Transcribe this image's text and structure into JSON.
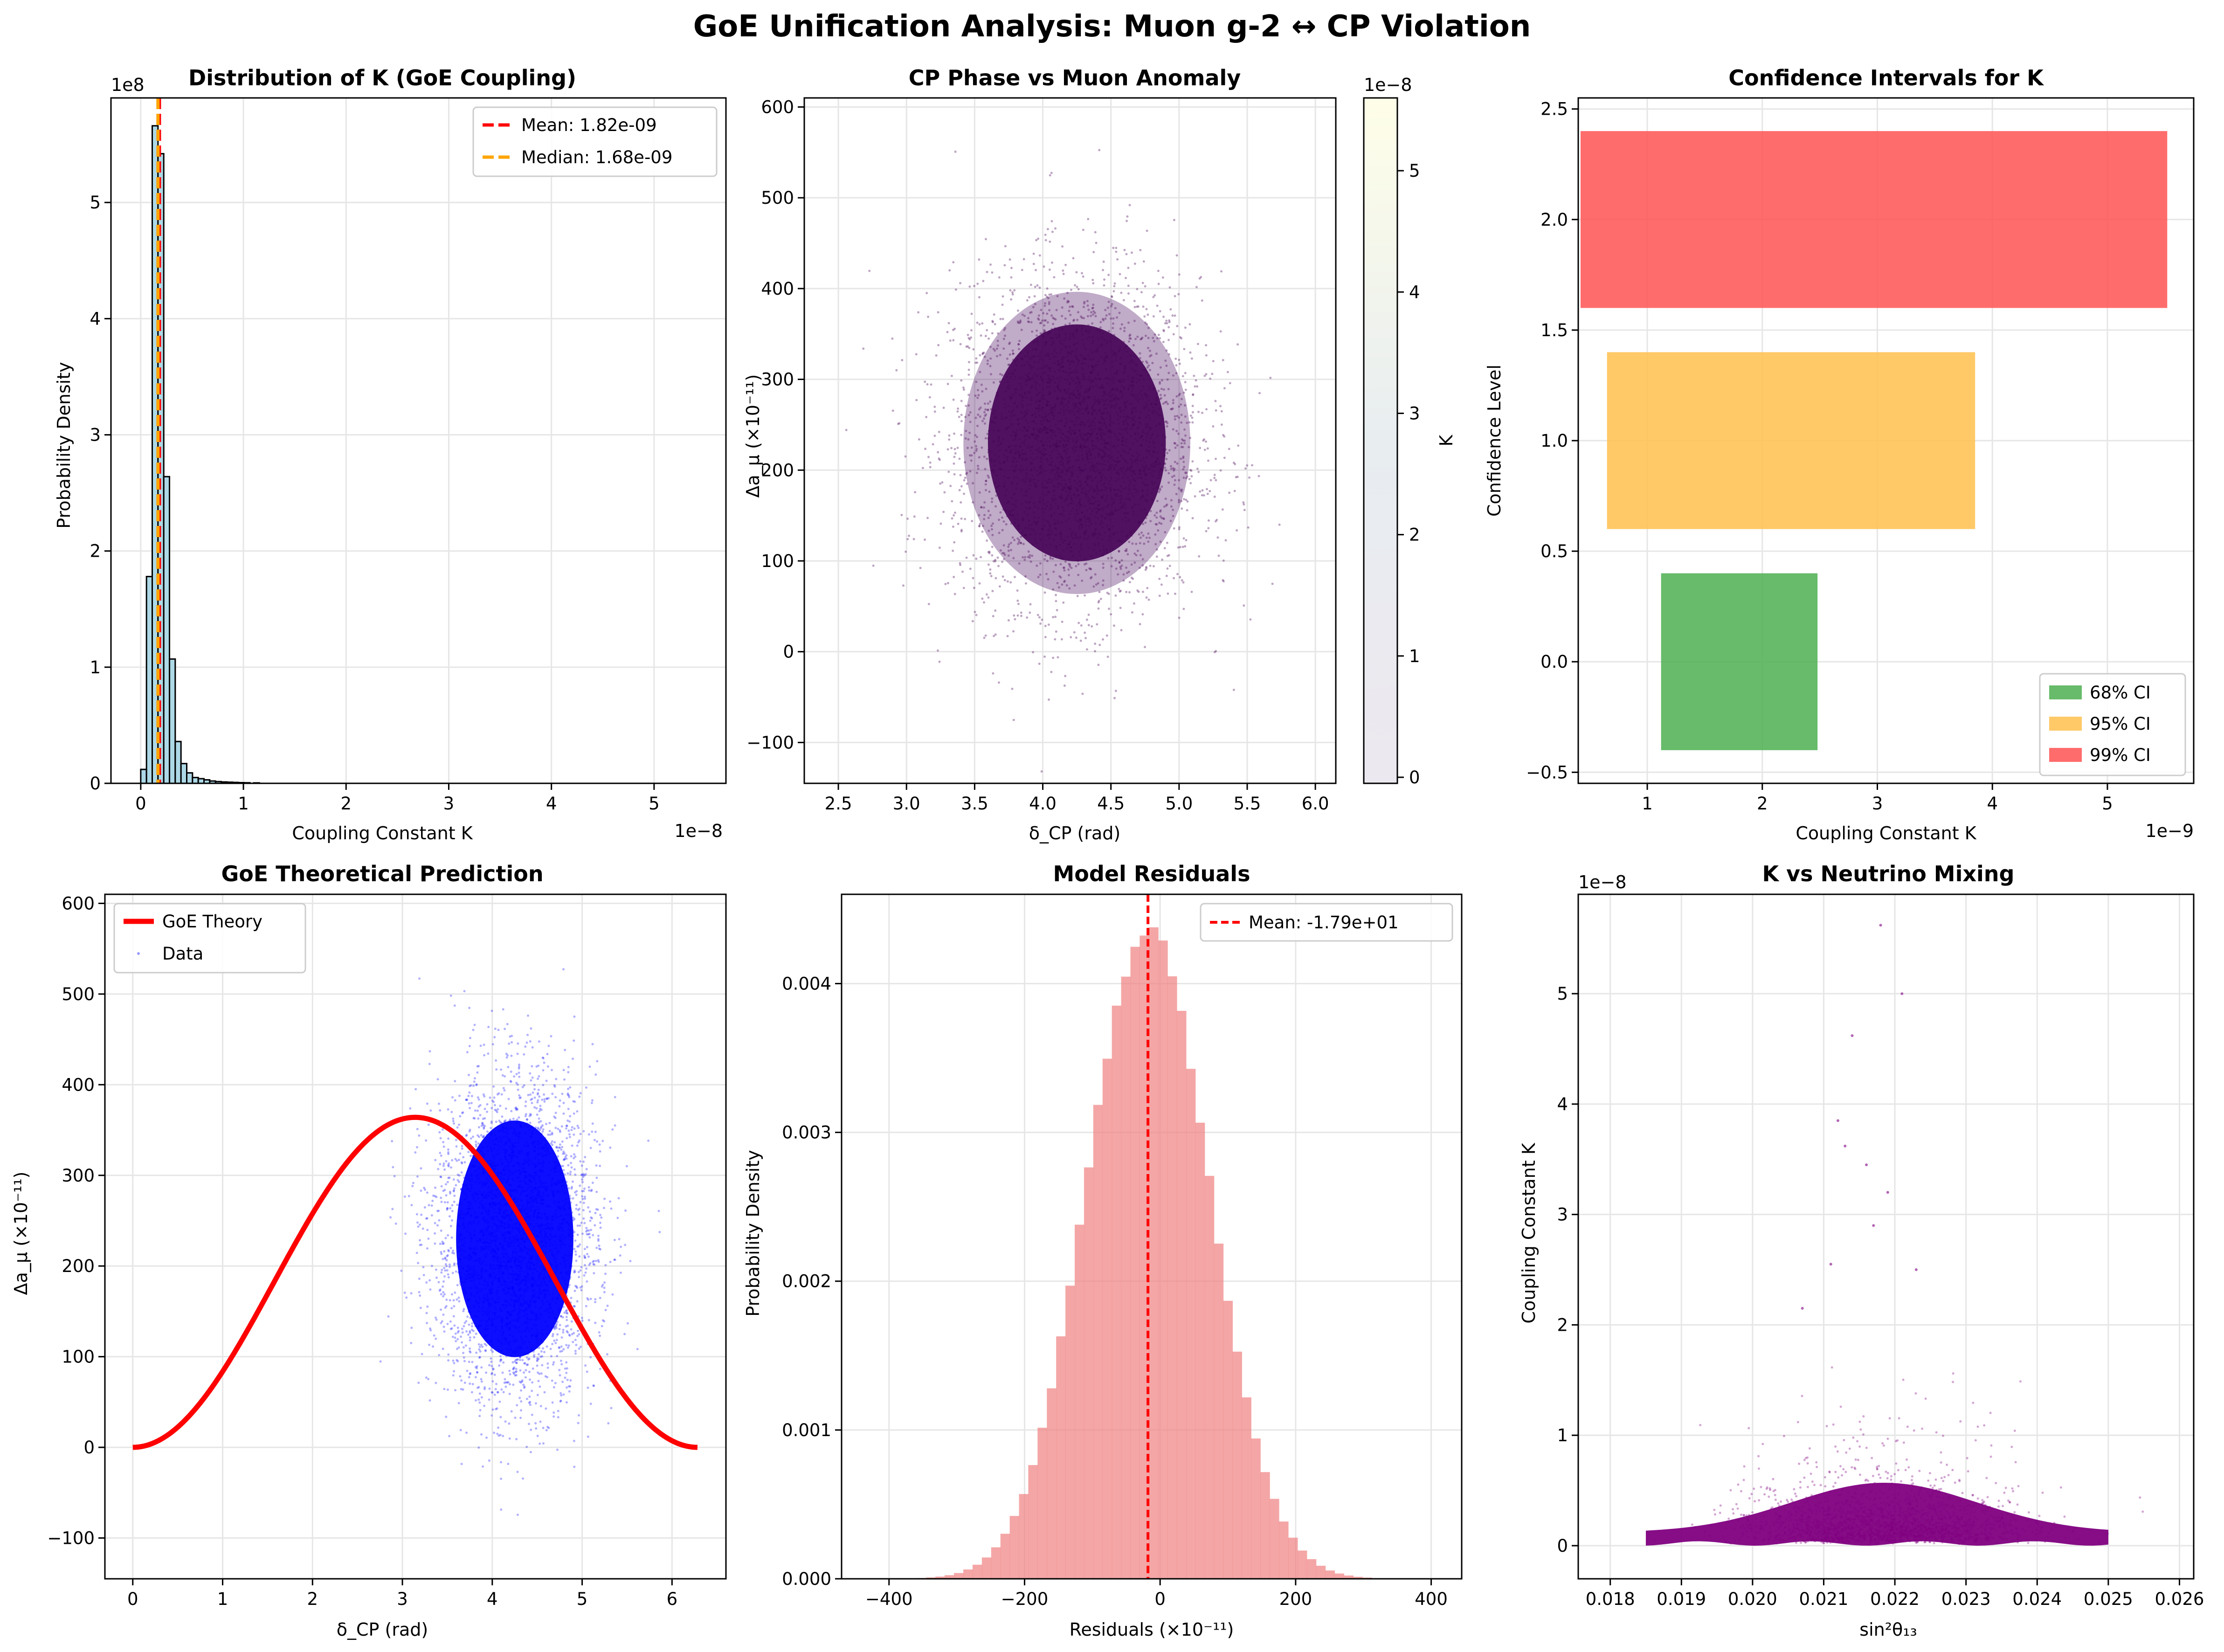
{
  "suptitle": "GoE Unification Analysis: Muon g-2 ↔ CP Violation",
  "colors": {
    "hist_fill": "#add8e6",
    "hist_edge": "#000000",
    "mean_line": "#ff0000",
    "median_line": "#ffa500",
    "ci68": "#4caf50",
    "ci95": "#ffc04d",
    "ci99": "#ff5252",
    "theory": "#ff0000",
    "data_points": "#0000ff",
    "residual_fill": "#f08080",
    "mixing_points": "#800080",
    "grid": "#e6e6e6"
  },
  "chart_data": [
    {
      "id": "k-distribution",
      "type": "bar",
      "title": "Distribution of K (GoE Coupling)",
      "xlabel": "Coupling Constant K",
      "ylabel": "Probability Density",
      "x_offset_label": "1e−8",
      "y_offset_label": "1e8",
      "xlim": [
        -0.29,
        5.7
      ],
      "ylim": [
        0,
        5.9
      ],
      "xticks": [
        0,
        1,
        2,
        3,
        4,
        5
      ],
      "xtick_labels": [
        "0",
        "1",
        "2",
        "3",
        "4",
        "5"
      ],
      "yticks": [
        0,
        1,
        2,
        3,
        4,
        5
      ],
      "ytick_labels": [
        "0",
        "1",
        "2",
        "3",
        "4",
        "5"
      ],
      "bin_width": 0.056,
      "bins_x": [
        0.0,
        0.056,
        0.112,
        0.168,
        0.224,
        0.28,
        0.336,
        0.392,
        0.448,
        0.504,
        0.56,
        0.616,
        0.672,
        0.728,
        0.784,
        0.84,
        0.896,
        0.952,
        1.008,
        1.1
      ],
      "values": [
        0.12,
        1.78,
        5.66,
        5.42,
        2.64,
        1.07,
        0.36,
        0.17,
        0.09,
        0.05,
        0.04,
        0.03,
        0.02,
        0.015,
        0.012,
        0.01,
        0.008,
        0.006,
        0.005,
        0.004
      ],
      "vlines": [
        {
          "label": "Mean: 1.82e-09",
          "x": 0.182,
          "style": "mean"
        },
        {
          "label": "Median: 1.68e-09",
          "x": 0.168,
          "style": "median"
        }
      ],
      "legend": "upper right",
      "grid": true
    },
    {
      "id": "cp-vs-muon",
      "type": "scatter",
      "title": "CP Phase vs Muon Anomaly",
      "xlabel": "δ_CP (rad)",
      "ylabel": "Δa_μ (×10⁻¹¹)",
      "xlim": [
        2.25,
        6.15
      ],
      "ylim": [
        -145,
        610
      ],
      "xticks": [
        2.5,
        3.0,
        3.5,
        4.0,
        4.5,
        5.0,
        5.5,
        6.0
      ],
      "xtick_labels": [
        "2.5",
        "3.0",
        "3.5",
        "4.0",
        "4.5",
        "5.0",
        "5.5",
        "6.0"
      ],
      "yticks": [
        -100,
        0,
        100,
        200,
        300,
        400,
        500,
        600
      ],
      "ytick_labels": [
        "−100",
        "0",
        "100",
        "200",
        "300",
        "400",
        "500",
        "600"
      ],
      "cloud": {
        "center_x": 4.25,
        "center_y": 230,
        "sigma_x": 0.45,
        "sigma_y": 90
      },
      "colorbar": {
        "label": "K",
        "offset_label": "1e−8",
        "ticks": [
          0,
          1,
          2,
          3,
          4,
          5
        ],
        "tick_labels": [
          "0",
          "1",
          "2",
          "3",
          "4",
          "5"
        ],
        "range": [
          -0.05,
          5.6
        ],
        "stops": [
          "#440154",
          "#3b528b",
          "#21918c",
          "#5ec962",
          "#fde725"
        ]
      },
      "grid": true
    },
    {
      "id": "confidence-intervals",
      "type": "bar",
      "orientation": "horizontal",
      "title": "Confidence Intervals for K",
      "xlabel": "Coupling Constant K",
      "ylabel": "Confidence Level",
      "x_offset_label": "1e−9",
      "xlim": [
        0.4,
        5.75
      ],
      "ylim": [
        -0.55,
        2.55
      ],
      "xticks": [
        1,
        2,
        3,
        4,
        5
      ],
      "xtick_labels": [
        "1",
        "2",
        "3",
        "4",
        "5"
      ],
      "yticks": [
        -0.5,
        0.0,
        0.5,
        1.0,
        1.5,
        2.0,
        2.5
      ],
      "ytick_labels": [
        "−0.5",
        "0.0",
        "0.5",
        "1.0",
        "1.5",
        "2.0",
        "2.5"
      ],
      "bars": [
        {
          "name": "68% CI",
          "y": 0,
          "low": 1.12,
          "high": 2.48,
          "color_key": "ci68"
        },
        {
          "name": "95% CI",
          "y": 1,
          "low": 0.65,
          "high": 3.85,
          "color_key": "ci95"
        },
        {
          "name": "99% CI",
          "y": 2,
          "low": 0.42,
          "high": 5.52,
          "color_key": "ci99"
        }
      ],
      "bar_height": 0.8,
      "legend": "lower right",
      "grid": true
    },
    {
      "id": "goe-theory",
      "type": "line",
      "title": "GoE Theoretical Prediction",
      "xlabel": "δ_CP (rad)",
      "ylabel": "Δa_μ (×10⁻¹¹)",
      "xlim": [
        -0.31,
        6.6
      ],
      "ylim": [
        -145,
        610
      ],
      "xticks": [
        0,
        1,
        2,
        3,
        4,
        5,
        6
      ],
      "xtick_labels": [
        "0",
        "1",
        "2",
        "3",
        "4",
        "5",
        "6"
      ],
      "yticks": [
        -100,
        0,
        100,
        200,
        300,
        400,
        500,
        600
      ],
      "ytick_labels": [
        "−100",
        "0",
        "100",
        "200",
        "300",
        "400",
        "500",
        "600"
      ],
      "series": [
        {
          "name": "GoE Theory",
          "kind": "line",
          "formula": "182*(1-cos(x))",
          "x_range": [
            0,
            6.2832
          ],
          "peak": 364
        },
        {
          "name": "Data",
          "kind": "scatter",
          "cloud": {
            "center_x": 4.25,
            "center_y": 230,
            "sigma_x": 0.45,
            "sigma_y": 90
          }
        }
      ],
      "legend": "upper left",
      "grid": true
    },
    {
      "id": "model-residuals",
      "type": "bar",
      "title": "Model Residuals",
      "xlabel": "Residuals (×10⁻¹¹)",
      "ylabel": "Probability Density",
      "xlim": [
        -470,
        445
      ],
      "ylim": [
        0,
        0.0046
      ],
      "xticks": [
        -400,
        -200,
        0,
        200,
        400
      ],
      "xtick_labels": [
        "−400",
        "−200",
        "0",
        "200",
        "400"
      ],
      "yticks": [
        0,
        0.001,
        0.002,
        0.003,
        0.004
      ],
      "ytick_labels": [
        "0.000",
        "0.001",
        "0.002",
        "0.003",
        "0.004"
      ],
      "bin_width": 13.7,
      "gaussian": {
        "mean": -17.9,
        "sigma": 91,
        "peak": 0.00438,
        "range": [
          -400,
          400
        ]
      },
      "vlines": [
        {
          "label": "Mean: -1.79e+01",
          "x": -17.9,
          "style": "mean"
        }
      ],
      "legend": "upper right",
      "grid": true
    },
    {
      "id": "k-vs-mixing",
      "type": "scatter",
      "title": "K vs Neutrino Mixing",
      "xlabel": "sin²θ₁₃",
      "ylabel": "Coupling Constant K",
      "y_offset_label": "1e−8",
      "xlim": [
        0.01755,
        0.0262
      ],
      "ylim": [
        -0.3,
        5.9
      ],
      "xticks": [
        0.018,
        0.019,
        0.02,
        0.021,
        0.022,
        0.023,
        0.024,
        0.025,
        0.026
      ],
      "xtick_labels": [
        "0.018",
        "0.019",
        "0.020",
        "0.021",
        "0.022",
        "0.023",
        "0.024",
        "0.025",
        "0.026"
      ],
      "yticks": [
        0,
        1,
        2,
        3,
        4,
        5
      ],
      "ytick_labels": [
        "0",
        "1",
        "2",
        "3",
        "4",
        "5"
      ],
      "cloud": {
        "center_x": 0.02185,
        "sigma_x": 0.00095,
        "k_median": 0.168
      },
      "outliers": [
        [
          0.0218,
          5.62
        ],
        [
          0.0221,
          5.0
        ],
        [
          0.0214,
          4.62
        ],
        [
          0.0212,
          3.85
        ],
        [
          0.0213,
          3.62
        ],
        [
          0.0216,
          3.45
        ],
        [
          0.0219,
          3.2
        ],
        [
          0.0211,
          2.55
        ],
        [
          0.0223,
          2.5
        ],
        [
          0.0217,
          2.9
        ],
        [
          0.0207,
          2.15
        ]
      ],
      "grid": true
    }
  ]
}
